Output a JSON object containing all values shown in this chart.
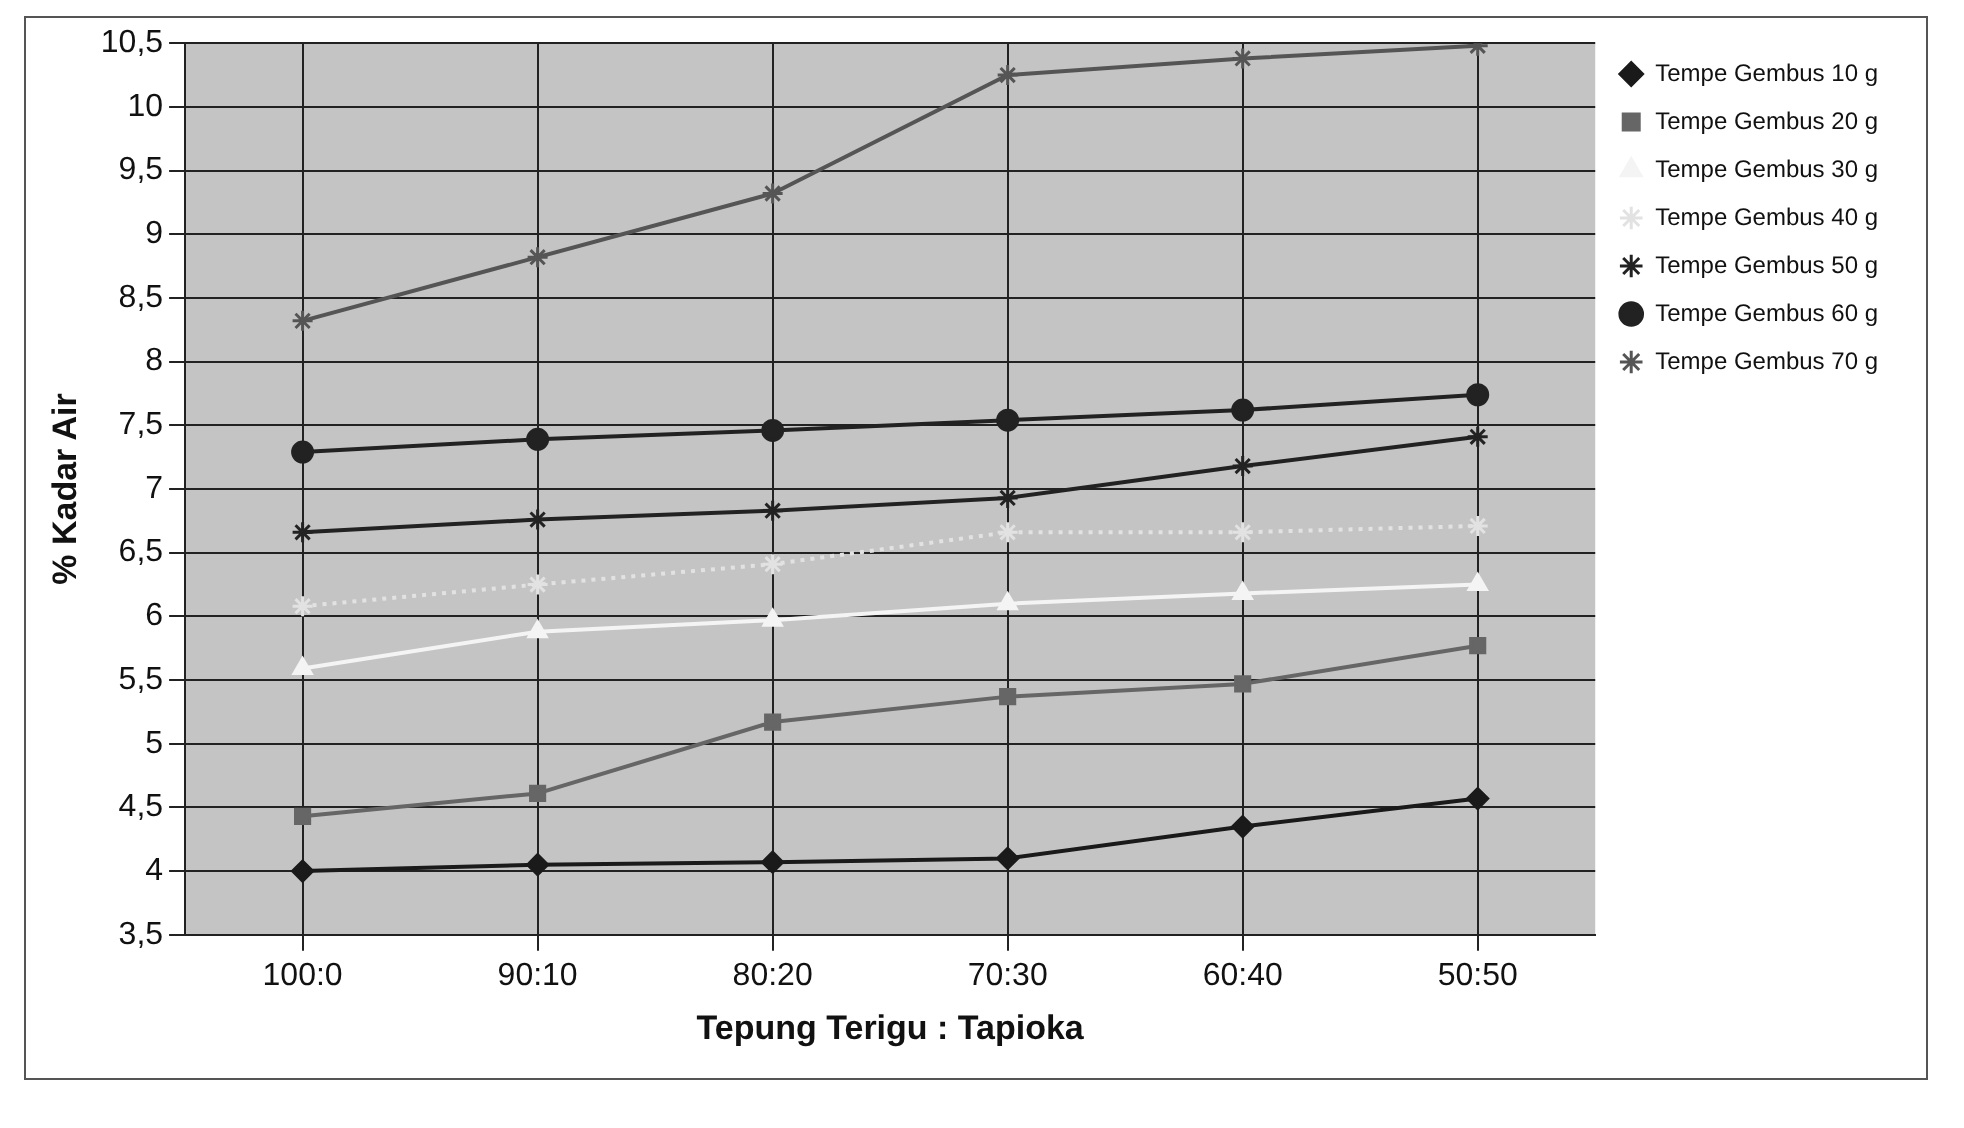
{
  "chart_data": {
    "type": "line",
    "xlabel": "Tepung Terigu : Tapioka",
    "ylabel": "% Kadar Air",
    "categories": [
      "100:0",
      "90:10",
      "80:20",
      "70:30",
      "60:40",
      "50:50"
    ],
    "ylim": [
      3.5,
      10.5
    ],
    "yticks": [
      {
        "value": 3.5,
        "label": "3,5"
      },
      {
        "value": 4,
        "label": "4"
      },
      {
        "value": 4.5,
        "label": "4,5"
      },
      {
        "value": 5,
        "label": "5"
      },
      {
        "value": 5.5,
        "label": "5,5"
      },
      {
        "value": 6,
        "label": "6"
      },
      {
        "value": 6.5,
        "label": "6,5"
      },
      {
        "value": 7,
        "label": "7"
      },
      {
        "value": 7.5,
        "label": "7,5"
      },
      {
        "value": 8,
        "label": "8"
      },
      {
        "value": 8.5,
        "label": "8,5"
      },
      {
        "value": 9,
        "label": "9"
      },
      {
        "value": 9.5,
        "label": "9,5"
      },
      {
        "value": 10,
        "label": "10"
      },
      {
        "value": 10.5,
        "label": "10,5"
      }
    ],
    "grid": true,
    "legend": "right",
    "series": [
      {
        "name": "Tempe Gembus 10 g",
        "color": "#1a1a1a",
        "marker": "diamond",
        "line_style": "solid",
        "values": [
          4.0,
          4.05,
          4.07,
          4.1,
          4.35,
          4.57
        ]
      },
      {
        "name": "Tempe Gembus 20 g",
        "color": "#666666",
        "marker": "square",
        "line_style": "solid",
        "values": [
          4.43,
          4.61,
          5.17,
          5.37,
          5.47,
          5.77
        ]
      },
      {
        "name": "Tempe Gembus 30 g",
        "color": "#f4f4f4",
        "marker": "triangle",
        "line_style": "solid",
        "values": [
          5.59,
          5.88,
          5.97,
          6.1,
          6.18,
          6.25
        ]
      },
      {
        "name": "Tempe Gembus 40 g",
        "color": "#e2e2e2",
        "marker": "cross",
        "line_style": "dotted",
        "values": [
          6.08,
          6.25,
          6.41,
          6.66,
          6.66,
          6.71
        ]
      },
      {
        "name": "Tempe Gembus 50 g",
        "color": "#222222",
        "marker": "cross",
        "line_style": "solid",
        "values": [
          6.66,
          6.76,
          6.83,
          6.93,
          7.18,
          7.41
        ]
      },
      {
        "name": "Tempe Gembus 60 g",
        "color": "#222222",
        "marker": "circle",
        "line_style": "solid",
        "values": [
          7.29,
          7.39,
          7.46,
          7.54,
          7.62,
          7.74
        ]
      },
      {
        "name": "Tempe Gembus 70 g",
        "color": "#555555",
        "marker": "cross",
        "line_style": "solid",
        "values": [
          8.32,
          8.82,
          9.32,
          10.25,
          10.38,
          10.48
        ]
      }
    ]
  }
}
